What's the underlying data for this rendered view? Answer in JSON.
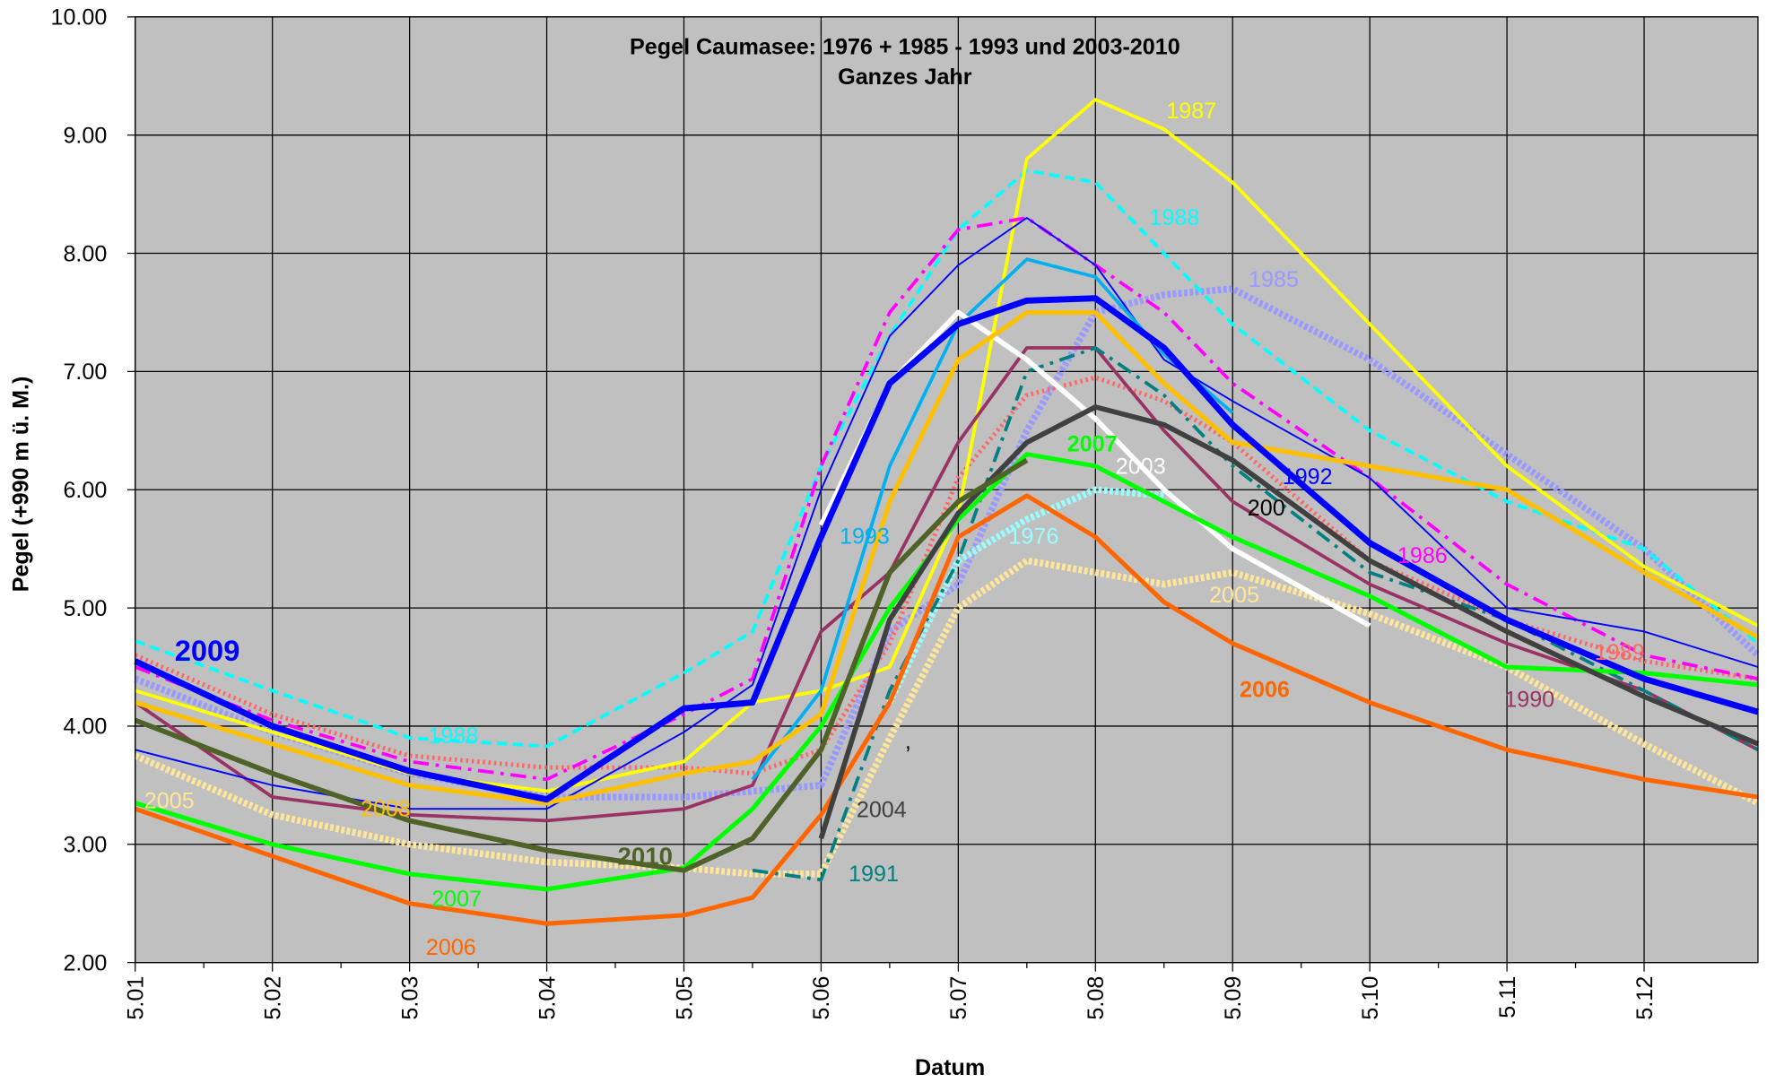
{
  "chart_data": {
    "type": "line",
    "title": "Pegel Caumasee: 1976 + 1985 - 1993 und 2003-2010",
    "subtitle": "Ganzes Jahr",
    "x_label": "Datum",
    "y_label": "Pegel (+990 m ü. M.)",
    "xlim": [
      0,
      11.83
    ],
    "xticks": [
      {
        "value": 0,
        "label": "5.01"
      },
      {
        "value": 1,
        "label": "5.02"
      },
      {
        "value": 2,
        "label": "5.03"
      },
      {
        "value": 3,
        "label": "5.04"
      },
      {
        "value": 4,
        "label": "5.05"
      },
      {
        "value": 5,
        "label": "5.06"
      },
      {
        "value": 6,
        "label": "5.07"
      },
      {
        "value": 7,
        "label": "5.08"
      },
      {
        "value": 8,
        "label": "5.09"
      },
      {
        "value": 9,
        "label": "5.10"
      },
      {
        "value": 10,
        "label": "5.11"
      },
      {
        "value": 11,
        "label": "5.12"
      }
    ],
    "ylim": [
      2,
      10
    ],
    "yticks": [
      {
        "value": 2,
        "label": "2.00"
      },
      {
        "value": 3,
        "label": "3.00"
      },
      {
        "value": 4,
        "label": "4.00"
      },
      {
        "value": 5,
        "label": "5.00"
      },
      {
        "value": 6,
        "label": "6.00"
      },
      {
        "value": 7,
        "label": "7.00"
      },
      {
        "value": 8,
        "label": "8.00"
      },
      {
        "value": 9,
        "label": "9.00"
      },
      {
        "value": 10,
        "label": "10.00"
      }
    ],
    "grid": true,
    "background": "#c0c0c0",
    "x": [
      0,
      1,
      2,
      3,
      4,
      4.5,
      5,
      5.5,
      6,
      6.5,
      7,
      7.5,
      8,
      9,
      10,
      11,
      11.83
    ],
    "series": [
      {
        "name": "1985",
        "color": "#9999ff",
        "style": "hatched",
        "values": [
          4.4,
          3.95,
          3.6,
          3.4,
          3.4,
          3.45,
          3.5,
          4.8,
          5.2,
          6.5,
          7.5,
          7.65,
          7.7,
          7.1,
          6.3,
          5.5,
          4.6
        ]
      },
      {
        "name": "1976",
        "color": "#99ffff",
        "style": "hatched",
        "values": [
          null,
          null,
          null,
          null,
          null,
          null,
          null,
          4.2,
          5.4,
          5.75,
          6.0,
          5.95,
          null,
          null,
          null,
          null,
          null
        ]
      },
      {
        "name": "2005",
        "color": "#ffe699",
        "style": "hatched",
        "values": [
          3.75,
          3.25,
          3.0,
          2.85,
          2.8,
          2.75,
          2.75,
          3.9,
          5.0,
          5.4,
          5.3,
          5.2,
          5.3,
          4.95,
          4.5,
          3.85,
          3.35
        ]
      },
      {
        "name": "1989",
        "color": "#ff6666",
        "style": "dotted",
        "values": [
          4.6,
          4.1,
          3.75,
          3.65,
          3.65,
          3.6,
          3.8,
          4.7,
          6.1,
          6.8,
          6.95,
          6.75,
          6.4,
          5.4,
          4.9,
          4.55,
          4.4
        ]
      },
      {
        "name": "1988",
        "color": "#00ffff",
        "style": "dashed",
        "values": [
          4.72,
          4.3,
          3.9,
          3.83,
          4.45,
          4.8,
          6.2,
          7.3,
          8.2,
          8.7,
          8.6,
          8.0,
          7.4,
          6.5,
          5.9,
          5.5,
          4.7
        ]
      },
      {
        "name": "1987",
        "color": "#ffff00",
        "style": "solid",
        "values": [
          4.3,
          3.95,
          3.6,
          3.45,
          3.7,
          4.2,
          4.3,
          4.5,
          5.8,
          8.8,
          9.3,
          9.05,
          8.6,
          7.4,
          6.2,
          5.35,
          4.85
        ]
      },
      {
        "name": "1986",
        "color": "#ff00ff",
        "style": "dashdot",
        "values": [
          4.5,
          4.05,
          3.7,
          3.55,
          4.1,
          4.4,
          6.2,
          7.5,
          8.2,
          8.3,
          7.9,
          7.5,
          6.9,
          6.1,
          5.2,
          4.6,
          4.4
        ]
      },
      {
        "name": "1990",
        "color": "#993366",
        "style": "solid",
        "values": [
          4.2,
          3.4,
          3.25,
          3.2,
          3.3,
          3.5,
          4.8,
          5.3,
          6.4,
          7.2,
          7.2,
          6.5,
          5.9,
          5.2,
          4.7,
          4.3,
          3.8
        ]
      },
      {
        "name": "1991",
        "color": "#008080",
        "style": "dashdot",
        "values": [
          null,
          null,
          null,
          null,
          null,
          2.78,
          2.7,
          4.3,
          5.4,
          7.0,
          7.2,
          6.8,
          6.2,
          5.3,
          4.9,
          4.3,
          3.8
        ]
      },
      {
        "name": "1992",
        "color": "#0000ff",
        "style": "thin",
        "values": [
          3.8,
          3.5,
          3.3,
          3.3,
          3.95,
          4.35,
          6.0,
          7.3,
          7.9,
          8.3,
          7.9,
          7.1,
          6.75,
          6.1,
          5.0,
          4.8,
          4.5
        ]
      },
      {
        "name": "1993",
        "color": "#00b0f0",
        "style": "solid",
        "values": [
          null,
          null,
          null,
          null,
          null,
          3.55,
          4.3,
          6.2,
          7.4,
          7.95,
          7.8,
          7.15,
          6.65,
          null,
          null,
          null,
          null
        ]
      },
      {
        "name": "2003",
        "color": "#ffffff",
        "style": "solid",
        "values": [
          null,
          null,
          null,
          null,
          null,
          null,
          5.7,
          6.9,
          7.5,
          7.1,
          6.6,
          6.0,
          5.5,
          4.85,
          null,
          null,
          null
        ]
      },
      {
        "name": "2008",
        "color": "#ffc000",
        "style": "solid",
        "values": [
          4.2,
          3.85,
          3.5,
          3.35,
          3.6,
          3.7,
          4.1,
          5.9,
          7.1,
          7.5,
          7.5,
          6.9,
          6.4,
          6.2,
          6.0,
          5.3,
          4.75
        ]
      },
      {
        "name": "2006",
        "color": "#ff6600",
        "style": "solid",
        "values": [
          3.3,
          2.9,
          2.5,
          2.33,
          2.4,
          2.55,
          3.25,
          4.2,
          5.6,
          5.95,
          5.6,
          5.05,
          4.7,
          4.2,
          3.8,
          3.55,
          3.4
        ]
      },
      {
        "name": "2007",
        "color": "#00ff00",
        "style": "solid",
        "values": [
          3.35,
          3.0,
          2.75,
          2.62,
          2.8,
          3.3,
          4.0,
          5.0,
          5.75,
          6.3,
          6.2,
          5.9,
          5.6,
          5.1,
          4.5,
          4.45,
          4.35
        ]
      },
      {
        "name": "2004",
        "color": "#404040",
        "style": "solid",
        "values": [
          null,
          null,
          null,
          null,
          null,
          null,
          3.05,
          4.9,
          5.8,
          6.4,
          6.7,
          6.55,
          6.25,
          5.4,
          4.8,
          4.25,
          3.85
        ]
      },
      {
        "name": "2010",
        "color": "#4f6228",
        "style": "solid",
        "values": [
          4.05,
          3.6,
          3.2,
          2.95,
          2.78,
          3.05,
          3.8,
          5.3,
          5.9,
          6.25,
          null,
          null,
          null,
          null,
          null,
          null,
          null
        ]
      },
      {
        "name": "2009",
        "color": "#0000ff",
        "style": "solid",
        "values": [
          4.55,
          4.0,
          3.62,
          3.38,
          4.15,
          4.2,
          5.6,
          6.9,
          7.4,
          7.6,
          7.62,
          7.2,
          6.55,
          5.55,
          4.9,
          4.4,
          4.12
        ]
      }
    ],
    "annotations": [
      "200",
      ","
    ]
  }
}
